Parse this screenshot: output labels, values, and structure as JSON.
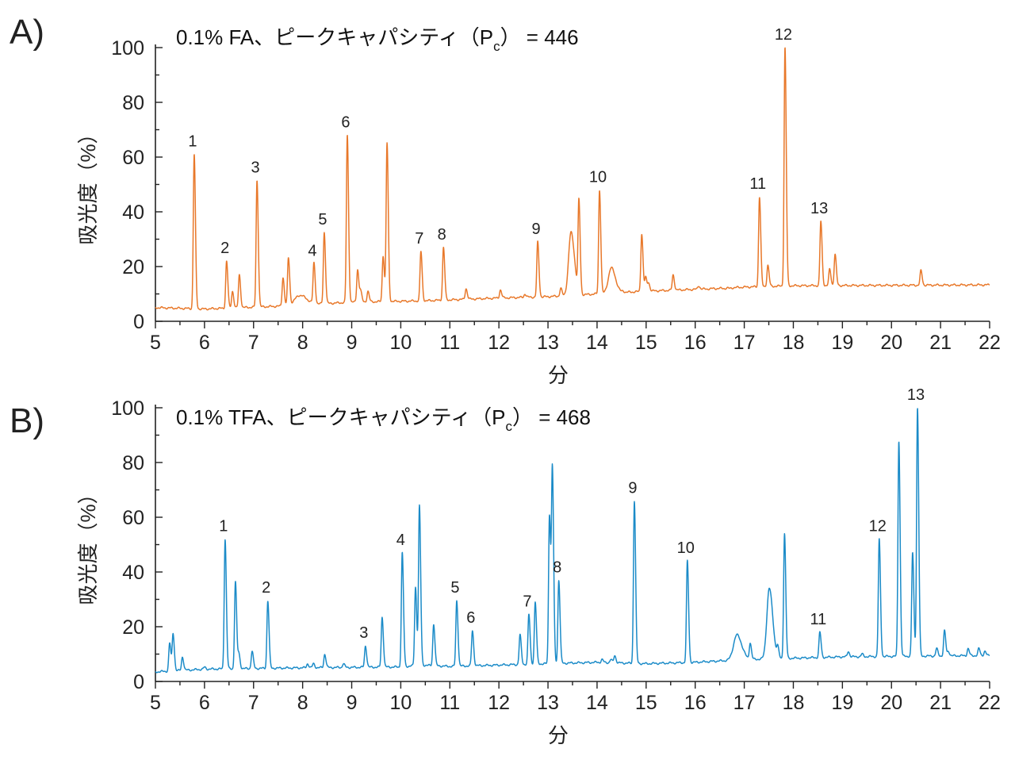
{
  "chart_data": [
    {
      "type": "line",
      "panel_label": "A)",
      "title_main": "0.1% FA、ピークキャパシティ（P",
      "title_sub": "c",
      "title_end": "）  = 446",
      "xlabel": "分",
      "ylabel": "吸光度（%）",
      "xlim": [
        5,
        22
      ],
      "ylim": [
        0,
        100
      ],
      "xticks": [
        5,
        6,
        7,
        8,
        9,
        10,
        11,
        12,
        13,
        14,
        15,
        16,
        17,
        18,
        19,
        20,
        21,
        22
      ],
      "yticks": [
        0,
        20,
        40,
        60,
        80,
        100
      ],
      "grid": false,
      "color": "#E8782A",
      "baseline": [
        [
          5,
          5
        ],
        [
          6,
          4.5
        ],
        [
          7.5,
          5.5
        ],
        [
          9,
          7
        ],
        [
          10.5,
          7.5
        ],
        [
          12,
          8.5
        ],
        [
          13,
          9
        ],
        [
          14,
          10
        ],
        [
          15,
          11
        ],
        [
          16.5,
          12
        ],
        [
          17,
          12.5
        ],
        [
          18,
          13
        ],
        [
          22,
          13.3
        ]
      ],
      "peaks": [
        {
          "t": 5.79,
          "h": 61,
          "label": "1"
        },
        {
          "t": 6.45,
          "h": 22,
          "label": "2"
        },
        {
          "t": 6.57,
          "h": 11
        },
        {
          "t": 6.71,
          "h": 17
        },
        {
          "t": 7.07,
          "h": 51.5,
          "label": "3"
        },
        {
          "t": 7.6,
          "h": 16
        },
        {
          "t": 7.71,
          "h": 23
        },
        {
          "t": 7.94,
          "h": 9.5,
          "w": 0.1
        },
        {
          "t": 8.23,
          "h": 21,
          "label": "4"
        },
        {
          "t": 8.44,
          "h": 32.5,
          "label": "5"
        },
        {
          "t": 8.91,
          "h": 68,
          "label": "6"
        },
        {
          "t": 9.12,
          "h": 19
        },
        {
          "t": 9.18,
          "h": 11
        },
        {
          "t": 9.33,
          "h": 11
        },
        {
          "t": 9.64,
          "h": 24
        },
        {
          "t": 9.72,
          "h": 65
        },
        {
          "t": 10.41,
          "h": 25.5,
          "label": "7"
        },
        {
          "t": 10.87,
          "h": 27,
          "label": "8"
        },
        {
          "t": 11.33,
          "h": 12
        },
        {
          "t": 12.03,
          "h": 11.5
        },
        {
          "t": 12.53,
          "h": 10
        },
        {
          "t": 12.79,
          "h": 29,
          "label": "9"
        },
        {
          "t": 13.26,
          "h": 12
        },
        {
          "t": 13.47,
          "h": 32.5,
          "w": 0.05
        },
        {
          "t": 13.63,
          "h": 43
        },
        {
          "t": 14.05,
          "h": 48,
          "label": "10"
        },
        {
          "t": 14.29,
          "h": 19.5,
          "w": 0.06
        },
        {
          "t": 14.53,
          "h": 11
        },
        {
          "t": 14.91,
          "h": 32
        },
        {
          "t": 14.99,
          "h": 16
        },
        {
          "t": 15.05,
          "h": 14
        },
        {
          "t": 15.55,
          "h": 17
        },
        {
          "t": 16.07,
          "h": 13
        },
        {
          "t": 16.38,
          "h": 12
        },
        {
          "t": 16.6,
          "h": 12
        },
        {
          "t": 16.7,
          "h": 12
        },
        {
          "t": 17.31,
          "h": 45.5,
          "label": "11"
        },
        {
          "t": 17.48,
          "h": 20.5
        },
        {
          "t": 17.83,
          "h": 100,
          "label": "12"
        },
        {
          "t": 18.56,
          "h": 36.5,
          "label": "13"
        },
        {
          "t": 18.74,
          "h": 19
        },
        {
          "t": 18.85,
          "h": 24.5
        },
        {
          "t": 20.6,
          "h": 18.5
        }
      ]
    },
    {
      "type": "line",
      "panel_label": "B)",
      "title_main": "0.1% TFA、ピークキャパシティ（P",
      "title_sub": "c",
      "title_end": "）  = 468",
      "xlabel": "分",
      "ylabel": "吸光度（%）",
      "xlim": [
        5,
        22
      ],
      "ylim": [
        0,
        100
      ],
      "xticks": [
        5,
        6,
        7,
        8,
        9,
        10,
        11,
        12,
        13,
        14,
        15,
        16,
        17,
        18,
        19,
        20,
        21,
        22
      ],
      "yticks": [
        0,
        20,
        40,
        60,
        80,
        100
      ],
      "grid": false,
      "color": "#1B8BC8",
      "baseline": [
        [
          5,
          3.5
        ],
        [
          6,
          4.5
        ],
        [
          8,
          5
        ],
        [
          10,
          5.3
        ],
        [
          10.4,
          6
        ],
        [
          11,
          5.5
        ],
        [
          12,
          6
        ],
        [
          13,
          6.5
        ],
        [
          14,
          7
        ],
        [
          15,
          6.5
        ],
        [
          16,
          7
        ],
        [
          17,
          8
        ],
        [
          18,
          8.5
        ],
        [
          19,
          9
        ],
        [
          22,
          9.5
        ]
      ],
      "peaks": [
        {
          "t": 5.29,
          "h": 14
        },
        {
          "t": 5.36,
          "h": 17.5
        },
        {
          "t": 5.55,
          "h": 9
        },
        {
          "t": 6.0,
          "h": 5.2
        },
        {
          "t": 6.42,
          "h": 52,
          "label": "1"
        },
        {
          "t": 6.63,
          "h": 36.5
        },
        {
          "t": 6.7,
          "h": 10
        },
        {
          "t": 6.97,
          "h": 11
        },
        {
          "t": 7.29,
          "h": 29.5,
          "label": "2"
        },
        {
          "t": 8.1,
          "h": 6.5
        },
        {
          "t": 8.22,
          "h": 6.5
        },
        {
          "t": 8.45,
          "h": 10
        },
        {
          "t": 8.83,
          "h": 6.5
        },
        {
          "t": 9.28,
          "h": 13,
          "label": "3"
        },
        {
          "t": 9.62,
          "h": 23.5
        },
        {
          "t": 10.03,
          "h": 47,
          "label": "4"
        },
        {
          "t": 10.3,
          "h": 34.5
        },
        {
          "t": 10.38,
          "h": 64
        },
        {
          "t": 10.67,
          "h": 21
        },
        {
          "t": 11.14,
          "h": 29.5,
          "label": "5"
        },
        {
          "t": 11.46,
          "h": 18.5,
          "label": "6"
        },
        {
          "t": 12.43,
          "h": 17
        },
        {
          "t": 12.61,
          "h": 24.5,
          "label": "7"
        },
        {
          "t": 12.74,
          "h": 29
        },
        {
          "t": 13.03,
          "h": 61
        },
        {
          "t": 13.09,
          "h": 76
        },
        {
          "t": 13.22,
          "h": 37,
          "label": "8"
        },
        {
          "t": 14.1,
          "h": 8
        },
        {
          "t": 14.28,
          "h": 8
        },
        {
          "t": 14.36,
          "h": 9.5
        },
        {
          "t": 14.76,
          "h": 66,
          "label": "9"
        },
        {
          "t": 15.84,
          "h": 44,
          "label": "10"
        },
        {
          "t": 16.85,
          "h": 17,
          "w": 0.07
        },
        {
          "t": 17.12,
          "h": 14
        },
        {
          "t": 17.51,
          "h": 34,
          "w": 0.05
        },
        {
          "t": 17.68,
          "h": 12
        },
        {
          "t": 17.82,
          "h": 54
        },
        {
          "t": 18.54,
          "h": 18,
          "label": "11"
        },
        {
          "t": 19.12,
          "h": 11
        },
        {
          "t": 19.4,
          "h": 10
        },
        {
          "t": 19.75,
          "h": 52,
          "label": "12"
        },
        {
          "t": 20.15,
          "h": 88
        },
        {
          "t": 20.43,
          "h": 47
        },
        {
          "t": 20.53,
          "h": 100,
          "label": "13"
        },
        {
          "t": 20.92,
          "h": 12
        },
        {
          "t": 21.08,
          "h": 18.5
        },
        {
          "t": 21.16,
          "h": 11
        },
        {
          "t": 21.56,
          "h": 12
        },
        {
          "t": 21.78,
          "h": 12
        },
        {
          "t": 21.9,
          "h": 11
        }
      ]
    }
  ]
}
